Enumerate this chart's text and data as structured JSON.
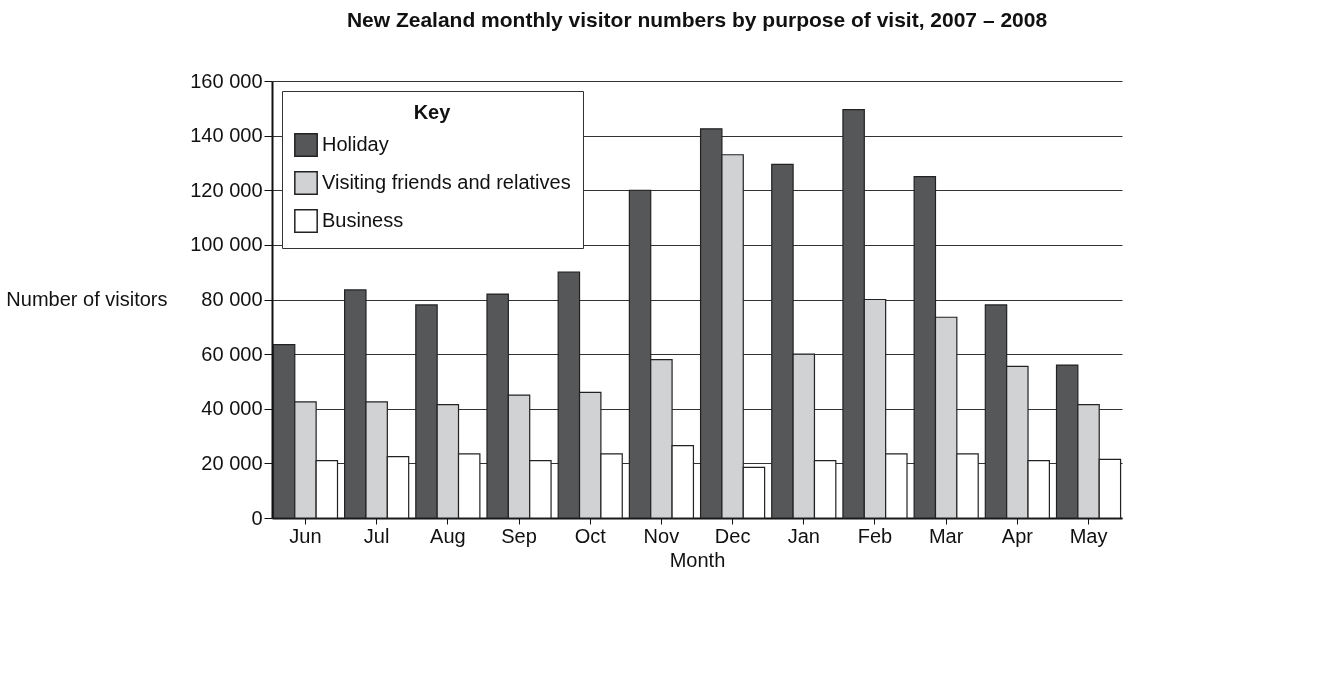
{
  "chart_data": {
    "type": "bar",
    "title": "New Zealand monthly visitor numbers by purpose of visit, 2007 – 2008",
    "xlabel": "Month",
    "ylabel": "Number of visitors",
    "legend_title": "Key",
    "legend": "top left",
    "grid": "y",
    "categories": [
      "Jun",
      "Jul",
      "Aug",
      "Sep",
      "Oct",
      "Nov",
      "Dec",
      "Jan",
      "Feb",
      "Mar",
      "Apr",
      "May"
    ],
    "series": [
      {
        "name": "Holiday",
        "color": "#555759",
        "values": [
          63500,
          83500,
          78000,
          82000,
          90000,
          120000,
          142500,
          129500,
          149500,
          125000,
          78000,
          56000
        ]
      },
      {
        "name": "Visiting friends and relatives",
        "color": "#d1d2d4",
        "values": [
          42500,
          42500,
          41500,
          45000,
          46000,
          58000,
          133000,
          60000,
          80000,
          73500,
          55500,
          41500
        ]
      },
      {
        "name": "Business",
        "color": "#ffffff",
        "values": [
          21000,
          22500,
          23500,
          21000,
          23500,
          26500,
          18500,
          21000,
          23500,
          23500,
          21000,
          21500
        ]
      }
    ],
    "ylim": [
      0,
      160000
    ],
    "yticks": [
      0,
      {
        "value": 20000,
        "label": "20 000"
      },
      {
        "value": 40000,
        "label": "40 000"
      },
      {
        "value": 60000,
        "label": "60 000"
      },
      {
        "value": 80000,
        "label": "80 000"
      },
      {
        "value": 100000,
        "label": "100 000"
      },
      {
        "value": 120000,
        "label": "120 000"
      },
      {
        "value": 140000,
        "label": "140 000"
      },
      {
        "value": 160000,
        "label": "160 000"
      }
    ]
  }
}
